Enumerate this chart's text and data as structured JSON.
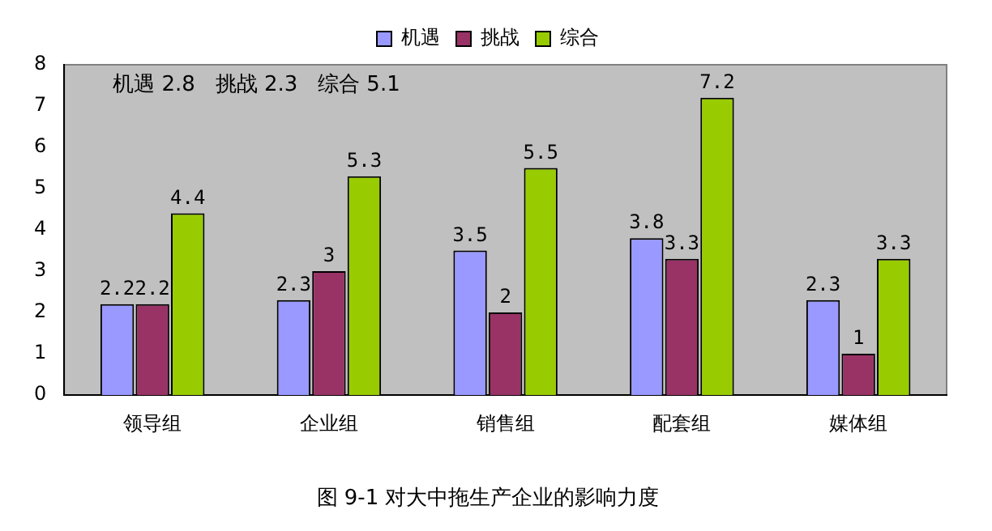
{
  "chart_data": {
    "type": "bar",
    "title": "图 9-1 对大中拖生产企业的影响力度",
    "categories": [
      "领导组",
      "企业组",
      "销售组",
      "配套组",
      "媒体组"
    ],
    "series": [
      {
        "name": "机遇",
        "color": "#9999ff",
        "values": [
          2.2,
          2.3,
          3.5,
          3.8,
          2.3
        ]
      },
      {
        "name": "挑战",
        "color": "#993366",
        "values": [
          2.2,
          3,
          2,
          3.3,
          1
        ]
      },
      {
        "name": "综合",
        "color": "#99cc00",
        "values": [
          4.4,
          5.3,
          5.5,
          7.2,
          3.3
        ]
      }
    ],
    "ylim": [
      0,
      8
    ],
    "yticks": [
      0,
      1,
      2,
      3,
      4,
      5,
      6,
      7,
      8
    ],
    "grid": false,
    "legend": "top",
    "data_labels": true,
    "annotations": [
      "机遇 2.8   挑战 2.3   综合 5.1"
    ]
  }
}
